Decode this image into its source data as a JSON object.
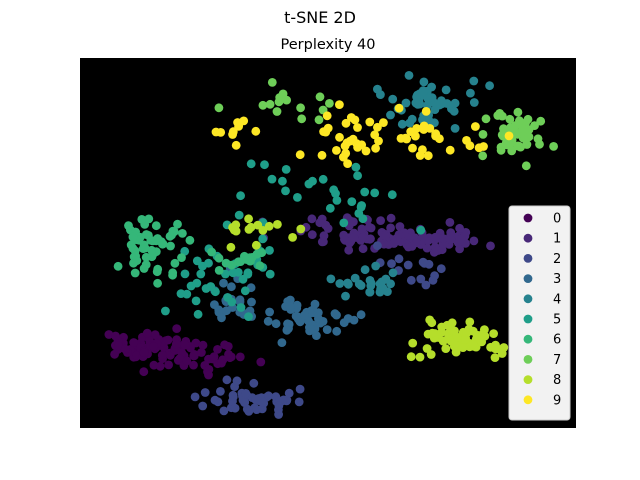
{
  "figure": {
    "suptitle": "t-SNE 2D"
  },
  "chart_data": {
    "type": "scatter",
    "title": "Perplexity 40",
    "xlabel": "",
    "ylabel": "",
    "axes_visible": false,
    "background": "#000000",
    "grid": false,
    "legend_placement": "center-right",
    "xlim": [
      -100,
      100
    ],
    "ylim": [
      -100,
      100
    ],
    "series": [
      {
        "name": "0",
        "color": "#440154",
        "clusters": [
          {
            "cx": -75,
            "cy": -56,
            "sx": 9,
            "sy": 4,
            "n": 60
          },
          {
            "cx": -53,
            "cy": -61,
            "sx": 11,
            "sy": 4,
            "n": 50
          }
        ]
      },
      {
        "name": "1",
        "color": "#482878",
        "clusters": [
          {
            "cx": 8,
            "cy": 6,
            "sx": 14,
            "sy": 4,
            "n": 50
          },
          {
            "cx": 38,
            "cy": 2,
            "sx": 14,
            "sy": 3,
            "n": 60
          }
        ]
      },
      {
        "name": "2",
        "color": "#3e4989",
        "clusters": [
          {
            "cx": -31,
            "cy": -85,
            "sx": 9,
            "sy": 4,
            "n": 50
          },
          {
            "cx": 35,
            "cy": -13,
            "sx": 7,
            "sy": 6,
            "n": 15
          }
        ]
      },
      {
        "name": "3",
        "color": "#31688e",
        "clusters": [
          {
            "cx": -40,
            "cy": -32,
            "sx": 6,
            "sy": 7,
            "n": 25
          },
          {
            "cx": -10,
            "cy": -42,
            "sx": 8,
            "sy": 6,
            "n": 50
          }
        ]
      },
      {
        "name": "4",
        "color": "#26828e",
        "clusters": [
          {
            "cx": 40,
            "cy": 76,
            "sx": 11,
            "sy": 7,
            "n": 50
          },
          {
            "cx": 17,
            "cy": -22,
            "sx": 8,
            "sy": 4,
            "n": 25
          }
        ]
      },
      {
        "name": "5",
        "color": "#1f9e89",
        "clusters": [
          {
            "cx": -40,
            "cy": -18,
            "sx": 12,
            "sy": 9,
            "n": 40
          },
          {
            "cx": -3,
            "cy": 27,
            "sx": 17,
            "sy": 10,
            "n": 30
          }
        ]
      },
      {
        "name": "6",
        "color": "#35b779",
        "clusters": [
          {
            "cx": -72,
            "cy": 0,
            "sx": 7,
            "sy": 9,
            "n": 55
          },
          {
            "cx": -38,
            "cy": -10,
            "sx": 6,
            "sy": 4,
            "n": 15
          }
        ]
      },
      {
        "name": "7",
        "color": "#6ece58",
        "clusters": [
          {
            "cx": 76,
            "cy": 59,
            "sx": 6,
            "sy": 6,
            "n": 50
          },
          {
            "cx": -20,
            "cy": 74,
            "sx": 12,
            "sy": 6,
            "n": 15
          }
        ]
      },
      {
        "name": "8",
        "color": "#b5de2b",
        "clusters": [
          {
            "cx": 55,
            "cy": -52,
            "sx": 10,
            "sy": 4,
            "n": 70
          },
          {
            "cx": -28,
            "cy": 6,
            "sx": 8,
            "sy": 5,
            "n": 15
          }
        ]
      },
      {
        "name": "9",
        "color": "#fde725",
        "clusters": [
          {
            "cx": 10,
            "cy": 57,
            "sx": 12,
            "sy": 7,
            "n": 30
          },
          {
            "cx": 38,
            "cy": 55,
            "sx": 12,
            "sy": 6,
            "n": 25
          },
          {
            "cx": -38,
            "cy": 60,
            "sx": 5,
            "sy": 4,
            "n": 10
          }
        ]
      }
    ]
  }
}
